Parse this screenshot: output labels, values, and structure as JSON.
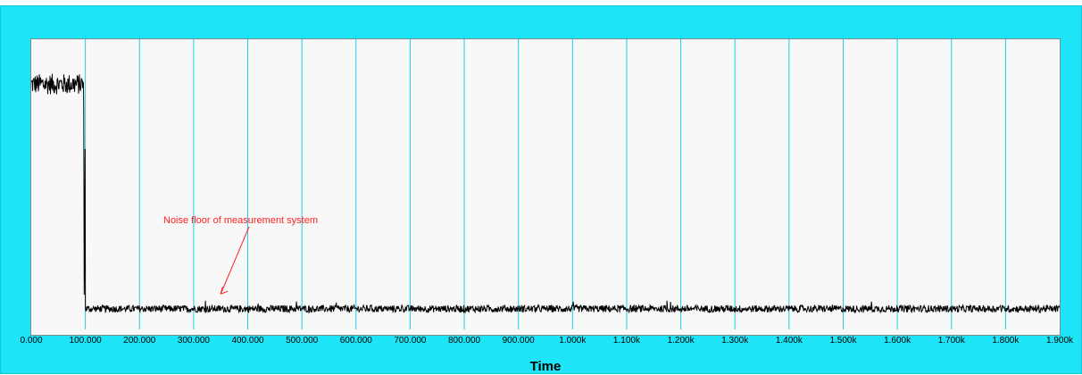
{
  "chart_data": {
    "type": "line",
    "title": "",
    "xlabel": "Time",
    "ylabel": "",
    "xlim": [
      0,
      1900
    ],
    "ylim": [
      0,
      1
    ],
    "grid": {
      "vertical": true,
      "horizontal": false
    },
    "x_ticks": [
      {
        "value": 0,
        "label": "0.000"
      },
      {
        "value": 100,
        "label": "100.000"
      },
      {
        "value": 200,
        "label": "200.000"
      },
      {
        "value": 300,
        "label": "300.000"
      },
      {
        "value": 400,
        "label": "400.000"
      },
      {
        "value": 500,
        "label": "500.000"
      },
      {
        "value": 600,
        "label": "600.000"
      },
      {
        "value": 700,
        "label": "700.000"
      },
      {
        "value": 800,
        "label": "800.000"
      },
      {
        "value": 900,
        "label": "900.000"
      },
      {
        "value": 1000,
        "label": "1.000k"
      },
      {
        "value": 1100,
        "label": "1.100k"
      },
      {
        "value": 1200,
        "label": "1.200k"
      },
      {
        "value": 1300,
        "label": "1.300k"
      },
      {
        "value": 1400,
        "label": "1.400k"
      },
      {
        "value": 1500,
        "label": "1.500k"
      },
      {
        "value": 1600,
        "label": "1.600k"
      },
      {
        "value": 1700,
        "label": "1.700k"
      },
      {
        "value": 1800,
        "label": "1.800k"
      },
      {
        "value": 1900,
        "label": "1.900k"
      }
    ],
    "series": [
      {
        "color": "#000000",
        "segments": [
          {
            "x_start": 0,
            "x_end": 97,
            "level": 0.83,
            "noise": 0.035
          },
          {
            "x_start": 97,
            "x_end": 100,
            "level": 0.45,
            "noise": 0.35
          },
          {
            "x_start": 100,
            "x_end": 1900,
            "level": 0.07,
            "noise": 0.012
          }
        ]
      }
    ],
    "annotations": [
      {
        "text": "Noise floor of measurement system",
        "x": 350,
        "y": 0.12,
        "color": "#ff2020"
      }
    ],
    "colors": {
      "frame": "#1ee4f7",
      "plot_background": "#f8f8f8",
      "gridline": "#1ecfe8"
    }
  }
}
